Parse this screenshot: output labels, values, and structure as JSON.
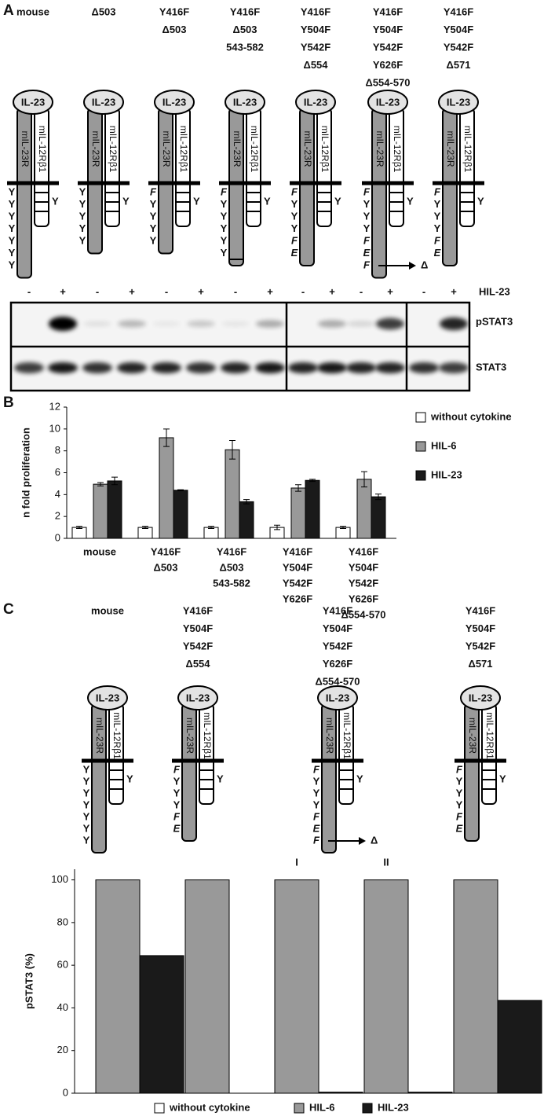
{
  "panel_a": {
    "letter": "A",
    "ligand": "IL-23",
    "receptor": "mIL-23R",
    "coreceptor": "mIL-12Rβ1",
    "coreceptor_residue": "Y",
    "delta": "Δ",
    "constructs": [
      {
        "label": [
          "mouse"
        ],
        "residues": [
          "Y",
          "Y",
          "Y",
          "Y",
          "Y",
          "Y",
          "Y"
        ]
      },
      {
        "label": [
          "Δ503"
        ],
        "residues": [
          "Y",
          "Y",
          "Y",
          "Y",
          "Y"
        ]
      },
      {
        "label": [
          "Y416F",
          "Δ503"
        ],
        "residues": [
          "F",
          "Y",
          "Y",
          "Y",
          "Y"
        ]
      },
      {
        "label": [
          "Y416F",
          "Δ503",
          "543-582"
        ],
        "residues": [
          "F",
          "Y",
          "Y",
          "Y",
          "Y",
          "Y"
        ]
      },
      {
        "label": [
          "Y416F",
          "Y504F",
          "Y542F",
          "Δ554"
        ],
        "residues": [
          "F",
          "Y",
          "Y",
          "Y",
          "F",
          "E"
        ]
      },
      {
        "label": [
          "Y416F",
          "Y504F",
          "Y542F",
          "Y626F",
          "Δ554-570"
        ],
        "residues": [
          "F",
          "Y",
          "Y",
          "Y",
          "F",
          "E",
          "F"
        ]
      },
      {
        "label": [
          "Y416F",
          "Y504F",
          "Y542F",
          "Δ571"
        ],
        "residues": [
          "F",
          "Y",
          "Y",
          "Y",
          "F",
          "E"
        ]
      }
    ],
    "blot": {
      "treatment": "HIL-23",
      "lanes": [
        "-",
        "+",
        "-",
        "+",
        "-",
        "+",
        "-",
        "+",
        "-",
        "+",
        "-",
        "+",
        "-",
        "+"
      ],
      "rows": [
        "pSTAT3",
        "STAT3"
      ]
    }
  },
  "panel_b": {
    "letter": "B"
  },
  "panel_c": {
    "letter": "C",
    "constructs": [
      {
        "label": [
          "mouse"
        ],
        "residues": [
          "Y",
          "Y",
          "Y",
          "Y",
          "Y",
          "Y",
          "Y"
        ]
      },
      {
        "label": [
          "Y416F",
          "Y504F",
          "Y542F",
          "Δ554"
        ],
        "residues": [
          "F",
          "Y",
          "Y",
          "Y",
          "F",
          "E"
        ]
      },
      {
        "label": [
          "Y416F",
          "Y504F",
          "Y542F",
          "Y626F",
          "Δ554-570"
        ],
        "residues": [
          "F",
          "Y",
          "Y",
          "Y",
          "F",
          "E",
          "F"
        ]
      },
      {
        "label": [
          "Y416F",
          "Y504F",
          "Y542F",
          "Δ571"
        ],
        "residues": [
          "F",
          "Y",
          "Y",
          "Y",
          "F",
          "E"
        ]
      }
    ]
  },
  "chart_data": [
    {
      "type": "bar",
      "y_label": "n fold proliferation",
      "categories": [
        [
          "mouse"
        ],
        [
          "Y416F",
          "Δ503"
        ],
        [
          "Y416F",
          "Δ503",
          "543-582"
        ],
        [
          "Y416F",
          "Y504F",
          "Y542F",
          "Y626F"
        ],
        [
          "Y416F",
          "Y504F",
          "Y542F",
          "Y626F",
          "Δ554-570"
        ]
      ],
      "series": [
        {
          "name": "without cytokine",
          "color": "#ffffff",
          "values": [
            1,
            1,
            1,
            1,
            1
          ],
          "errors": [
            0.1,
            0.1,
            0.1,
            0.2,
            0.1
          ]
        },
        {
          "name": "HIL-6",
          "color": "#999999",
          "values": [
            4.95,
            9.2,
            8.1,
            4.6,
            5.4
          ],
          "errors": [
            0.15,
            0.8,
            0.85,
            0.3,
            0.7
          ]
        },
        {
          "name": "HIL-23",
          "color": "#1a1a1a",
          "values": [
            5.25,
            4.4,
            3.35,
            5.3,
            3.8
          ],
          "errors": [
            0.35,
            0.05,
            0.2,
            0.1,
            0.25
          ]
        }
      ],
      "ylim": [
        0,
        12
      ],
      "yticks": [
        0,
        2,
        4,
        6,
        8,
        10,
        12
      ],
      "legend": "right"
    },
    {
      "type": "bar",
      "y_label": "pSTAT3 (%)",
      "categories": [
        null,
        null,
        null,
        null,
        null
      ],
      "annotations": [
        "I",
        "II"
      ],
      "series": [
        {
          "name": "without cytokine",
          "color": "#ffffff",
          "values": [
            0,
            0,
            0,
            0,
            0
          ]
        },
        {
          "name": "HIL-6",
          "color": "#999999",
          "values": [
            100,
            100,
            100,
            100,
            100
          ]
        },
        {
          "name": "HIL-23",
          "color": "#1a1a1a",
          "values": [
            64.5,
            0,
            0.5,
            0.5,
            43.5
          ]
        }
      ],
      "ylim": [
        0,
        105
      ],
      "yticks": [
        0,
        20,
        40,
        60,
        80,
        100
      ],
      "legend": "bottom"
    }
  ]
}
